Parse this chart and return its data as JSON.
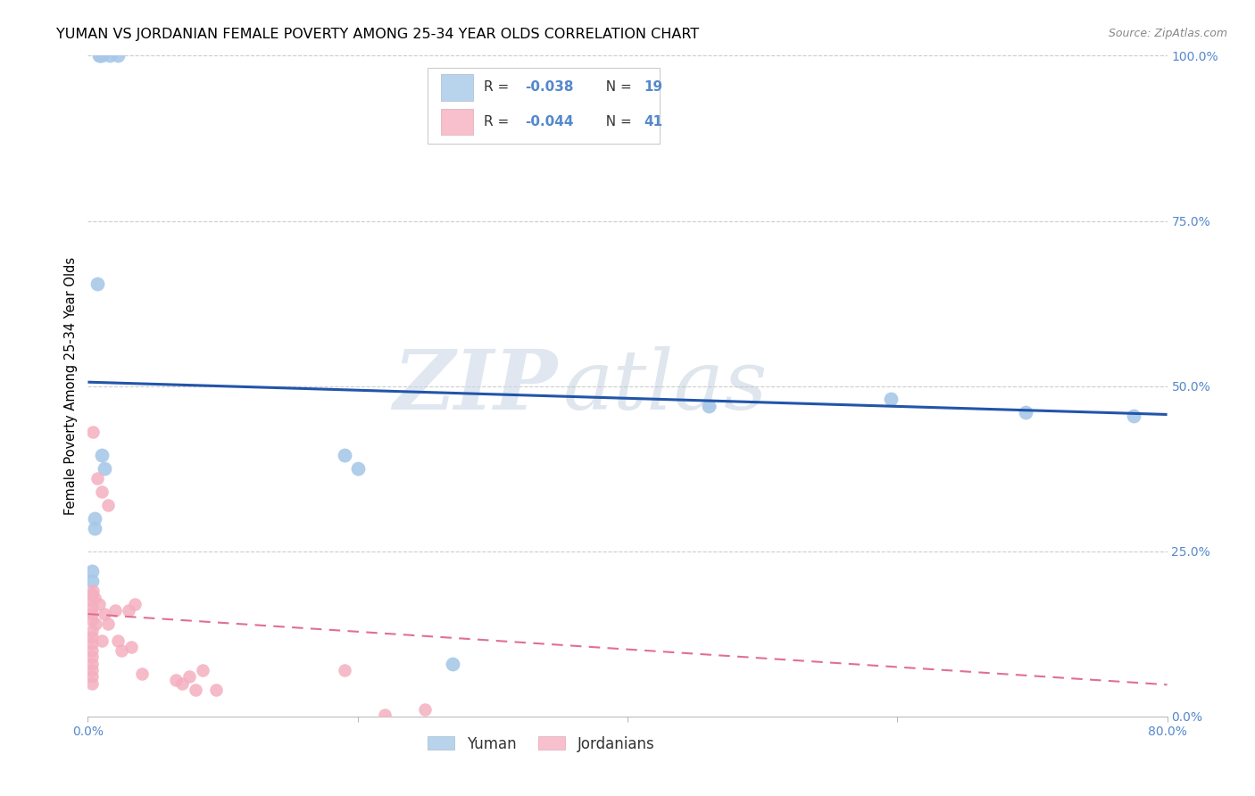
{
  "title": "YUMAN VS JORDANIAN FEMALE POVERTY AMONG 25-34 YEAR OLDS CORRELATION CHART",
  "source": "Source: ZipAtlas.com",
  "ylabel": "Female Poverty Among 25-34 Year Olds",
  "xlabel": "",
  "xlim": [
    0.0,
    0.8
  ],
  "ylim": [
    0.0,
    1.0
  ],
  "xtick_labels": [
    "0.0%",
    "",
    "",
    "",
    "80.0%"
  ],
  "xtick_values": [
    0.0,
    0.2,
    0.4,
    0.6,
    0.8
  ],
  "ytick_labels": [
    "100.0%",
    "75.0%",
    "50.0%",
    "25.0%",
    "0.0%"
  ],
  "ytick_values_right": [
    1.0,
    0.75,
    0.5,
    0.25,
    0.0
  ],
  "background_color": "#ffffff",
  "grid_color": "#cccccc",
  "watermark_zip": "ZIP",
  "watermark_atlas": "atlas",
  "yuman_color": "#a8c8e8",
  "jordanian_color": "#f4afc0",
  "yuman_trend_color": "#2255aa",
  "jordanian_trend_color": "#e07090",
  "legend_yuman_color": "#b8d4ec",
  "legend_jordanian_color": "#f8c0cc",
  "yuman_x": [
    0.008,
    0.01,
    0.016,
    0.022,
    0.009,
    0.007,
    0.005,
    0.003,
    0.003,
    0.005,
    0.01,
    0.012,
    0.19,
    0.2,
    0.27,
    0.46,
    0.595,
    0.695,
    0.775
  ],
  "yuman_y": [
    1.0,
    1.0,
    1.0,
    1.0,
    1.0,
    0.655,
    0.285,
    0.205,
    0.22,
    0.3,
    0.395,
    0.375,
    0.395,
    0.375,
    0.08,
    0.47,
    0.48,
    0.46,
    0.455
  ],
  "jordanian_x": [
    0.003,
    0.003,
    0.003,
    0.003,
    0.003,
    0.003,
    0.003,
    0.003,
    0.003,
    0.003,
    0.003,
    0.003,
    0.003,
    0.003,
    0.004,
    0.004,
    0.005,
    0.006,
    0.007,
    0.008,
    0.01,
    0.01,
    0.012,
    0.015,
    0.015,
    0.02,
    0.022,
    0.025,
    0.03,
    0.032,
    0.035,
    0.04,
    0.065,
    0.07,
    0.075,
    0.08,
    0.085,
    0.095,
    0.19,
    0.22,
    0.25
  ],
  "jordanian_y": [
    0.185,
    0.175,
    0.165,
    0.155,
    0.145,
    0.13,
    0.12,
    0.11,
    0.1,
    0.09,
    0.08,
    0.07,
    0.06,
    0.05,
    0.43,
    0.19,
    0.18,
    0.14,
    0.36,
    0.17,
    0.34,
    0.115,
    0.155,
    0.32,
    0.14,
    0.16,
    0.115,
    0.1,
    0.16,
    0.105,
    0.17,
    0.065,
    0.055,
    0.05,
    0.06,
    0.04,
    0.07,
    0.04,
    0.07,
    0.002,
    0.01
  ],
  "yuman_trend_x": [
    0.0,
    0.8
  ],
  "yuman_trend_y": [
    0.506,
    0.457
  ],
  "jordanian_trend_x": [
    0.0,
    0.8
  ],
  "jordanian_trend_y": [
    0.155,
    0.048
  ]
}
